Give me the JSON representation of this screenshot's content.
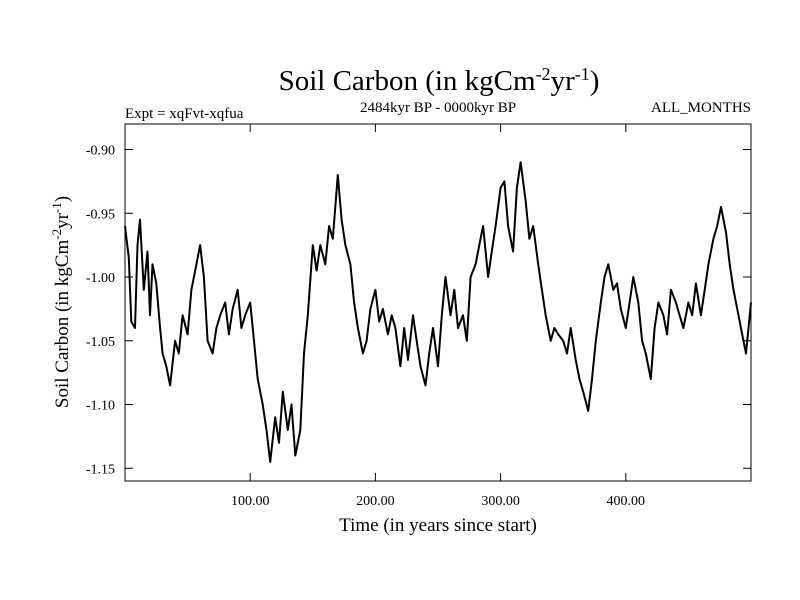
{
  "chart_data": {
    "type": "line",
    "title": {
      "main": "Soil Carbon (in kgCm",
      "sup1": "-2",
      "mid": "yr",
      "sup2": "-1",
      "end": ")"
    },
    "subtitle_left": "Expt = xqFvt-xqfua",
    "subtitle_center": "2484kyr BP - 0000kyr BP",
    "subtitle_right": "ALL_MONTHS",
    "xlabel": "Time (in years since start)",
    "ylabel": {
      "main": "Soil Carbon (in kgCm",
      "sup1": "-2",
      "mid": "yr",
      "sup2": "-1",
      "end": ")"
    },
    "xlim": [
      0,
      500
    ],
    "ylim": [
      -1.16,
      -0.88
    ],
    "x_ticks": [
      100,
      200,
      300,
      400
    ],
    "x_tick_labels": [
      "100.00",
      "200.00",
      "300.00",
      "400.00"
    ],
    "y_ticks": [
      -0.9,
      -0.95,
      -1.0,
      -1.05,
      -1.1,
      -1.15
    ],
    "y_tick_labels": [
      "-0.90",
      "-0.95",
      "-1.00",
      "-1.05",
      "-1.10",
      "-1.15"
    ],
    "series": [
      {
        "name": "Soil Carbon",
        "x": [
          0,
          3,
          5,
          8,
          10,
          12,
          15,
          18,
          20,
          22,
          25,
          28,
          30,
          33,
          36,
          40,
          43,
          46,
          50,
          53,
          57,
          60,
          63,
          66,
          70,
          73,
          76,
          80,
          83,
          86,
          90,
          93,
          96,
          100,
          103,
          106,
          110,
          113,
          116,
          120,
          123,
          126,
          130,
          133,
          136,
          140,
          143,
          146,
          150,
          153,
          156,
          160,
          163,
          166,
          170,
          173,
          176,
          180,
          183,
          186,
          190,
          193,
          196,
          200,
          203,
          206,
          210,
          213,
          216,
          220,
          223,
          226,
          230,
          233,
          236,
          240,
          243,
          246,
          250,
          253,
          256,
          260,
          263,
          266,
          270,
          273,
          276,
          280,
          283,
          286,
          290,
          293,
          296,
          300,
          303,
          306,
          310,
          313,
          316,
          320,
          323,
          326,
          330,
          333,
          336,
          340,
          343,
          346,
          350,
          353,
          356,
          360,
          363,
          366,
          370,
          373,
          376,
          380,
          383,
          386,
          390,
          393,
          396,
          400,
          403,
          406,
          410,
          413,
          416,
          420,
          423,
          426,
          430,
          433,
          436,
          440,
          443,
          446,
          450,
          453,
          456,
          460,
          463,
          466,
          470,
          473,
          476,
          480,
          483,
          486,
          490,
          493,
          496,
          500
        ],
        "y": [
          -0.96,
          -0.985,
          -1.035,
          -1.04,
          -0.975,
          -0.955,
          -1.01,
          -0.98,
          -1.03,
          -0.99,
          -1.005,
          -1.04,
          -1.06,
          -1.07,
          -1.085,
          -1.05,
          -1.06,
          -1.03,
          -1.045,
          -1.01,
          -0.99,
          -0.975,
          -1.0,
          -1.05,
          -1.06,
          -1.04,
          -1.03,
          -1.02,
          -1.045,
          -1.025,
          -1.01,
          -1.04,
          -1.03,
          -1.02,
          -1.05,
          -1.08,
          -1.1,
          -1.12,
          -1.145,
          -1.11,
          -1.13,
          -1.09,
          -1.12,
          -1.1,
          -1.14,
          -1.12,
          -1.06,
          -1.03,
          -0.975,
          -0.995,
          -0.975,
          -0.99,
          -0.96,
          -0.97,
          -0.92,
          -0.955,
          -0.975,
          -0.99,
          -1.02,
          -1.04,
          -1.06,
          -1.05,
          -1.025,
          -1.01,
          -1.035,
          -1.025,
          -1.045,
          -1.03,
          -1.04,
          -1.07,
          -1.04,
          -1.065,
          -1.03,
          -1.05,
          -1.07,
          -1.085,
          -1.06,
          -1.04,
          -1.07,
          -1.03,
          -1.0,
          -1.03,
          -1.01,
          -1.04,
          -1.03,
          -1.05,
          -1.0,
          -0.99,
          -0.975,
          -0.96,
          -1.0,
          -0.98,
          -0.96,
          -0.93,
          -0.925,
          -0.96,
          -0.98,
          -0.93,
          -0.91,
          -0.94,
          -0.97,
          -0.96,
          -0.99,
          -1.01,
          -1.03,
          -1.05,
          -1.04,
          -1.045,
          -1.05,
          -1.06,
          -1.04,
          -1.065,
          -1.08,
          -1.09,
          -1.105,
          -1.08,
          -1.05,
          -1.02,
          -1.0,
          -0.99,
          -1.01,
          -1.005,
          -1.025,
          -1.04,
          -1.02,
          -1.0,
          -1.02,
          -1.05,
          -1.06,
          -1.08,
          -1.04,
          -1.02,
          -1.03,
          -1.045,
          -1.01,
          -1.02,
          -1.03,
          -1.04,
          -1.02,
          -1.03,
          -1.005,
          -1.03,
          -1.01,
          -0.99,
          -0.97,
          -0.96,
          -0.945,
          -0.965,
          -0.99,
          -1.01,
          -1.03,
          -1.045,
          -1.06,
          -1.02
        ]
      }
    ]
  }
}
